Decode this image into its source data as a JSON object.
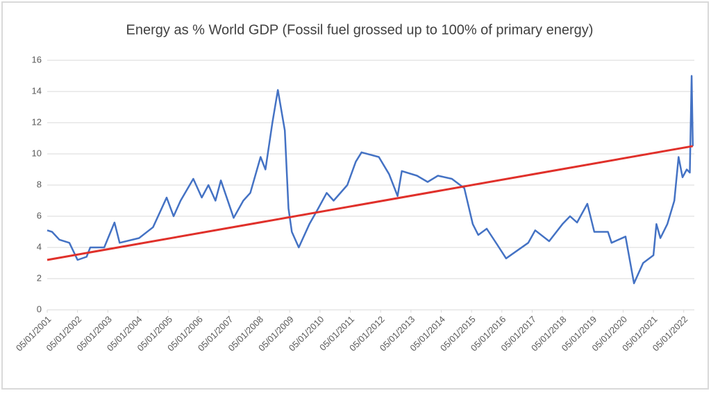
{
  "chart_data": {
    "type": "line",
    "title": "Energy as % World GDP (Fossil fuel grossed up to 100% of primary energy)",
    "series": [
      {
        "color": "#4472c4",
        "x": [
          2001.0,
          2001.16,
          2001.4,
          2001.73,
          2002.0,
          2002.3,
          2002.42,
          2002.88,
          2003.22,
          2003.39,
          2004.03,
          2004.49,
          2004.94,
          2005.17,
          2005.4,
          2005.82,
          2006.1,
          2006.32,
          2006.55,
          2006.73,
          2007.15,
          2007.47,
          2007.7,
          2008.04,
          2008.2,
          2008.43,
          2008.61,
          2008.84,
          2008.96,
          2009.07,
          2009.3,
          2009.65,
          2009.94,
          2010.22,
          2010.45,
          2010.9,
          2011.18,
          2011.37,
          2011.94,
          2012.28,
          2012.56,
          2012.7,
          2013.2,
          2013.55,
          2013.89,
          2014.35,
          2014.76,
          2015.04,
          2015.22,
          2015.5,
          2015.84,
          2016.14,
          2016.87,
          2017.1,
          2017.56,
          2018.0,
          2018.25,
          2018.48,
          2018.82,
          2019.05,
          2019.5,
          2019.62,
          2020.08,
          2020.36,
          2020.66,
          2021.0,
          2021.1,
          2021.23,
          2021.46,
          2021.69,
          2021.83,
          2021.96,
          2022.1,
          2022.2,
          2022.26,
          2022.3
        ],
        "values": [
          5.1,
          5.0,
          4.5,
          4.3,
          3.2,
          3.4,
          4.0,
          4.0,
          5.6,
          4.3,
          4.6,
          5.3,
          7.2,
          6.0,
          7.0,
          8.4,
          7.2,
          8.0,
          7.0,
          8.3,
          5.9,
          7.0,
          7.5,
          9.8,
          9.0,
          12.0,
          14.1,
          11.5,
          6.5,
          5.0,
          4.0,
          5.5,
          6.5,
          7.5,
          7.0,
          8.0,
          9.5,
          10.1,
          9.8,
          8.7,
          7.3,
          8.9,
          8.6,
          8.2,
          8.6,
          8.4,
          7.8,
          5.5,
          4.8,
          5.2,
          4.2,
          3.3,
          4.3,
          5.1,
          4.4,
          5.5,
          6.0,
          5.6,
          6.8,
          5.0,
          5.0,
          4.3,
          4.7,
          1.7,
          3.0,
          3.5,
          5.5,
          4.6,
          5.5,
          7.0,
          9.8,
          8.5,
          9.0,
          8.8,
          15.0,
          10.5
        ]
      },
      {
        "color": "#e0302a",
        "x": [
          2001.0,
          2022.3
        ],
        "values": [
          3.2,
          10.5
        ]
      }
    ],
    "xlim": [
      2001.0,
      2022.35
    ],
    "xticks": [
      {
        "value": 2001,
        "label": "05/01/2001"
      },
      {
        "value": 2002,
        "label": "05/01/2002"
      },
      {
        "value": 2003,
        "label": "05/01/2003"
      },
      {
        "value": 2004,
        "label": "05/01/2004"
      },
      {
        "value": 2005,
        "label": "05/01/2005"
      },
      {
        "value": 2006,
        "label": "05/01/2006"
      },
      {
        "value": 2007,
        "label": "05/01/2007"
      },
      {
        "value": 2008,
        "label": "05/01/2008"
      },
      {
        "value": 2009,
        "label": "05/01/2009"
      },
      {
        "value": 2010,
        "label": "05/01/2010"
      },
      {
        "value": 2011,
        "label": "05/01/2011"
      },
      {
        "value": 2012,
        "label": "05/01/2012"
      },
      {
        "value": 2013,
        "label": "05/01/2013"
      },
      {
        "value": 2014,
        "label": "05/01/2014"
      },
      {
        "value": 2015,
        "label": "05/01/2015"
      },
      {
        "value": 2016,
        "label": "05/01/2016"
      },
      {
        "value": 2017,
        "label": "05/01/2017"
      },
      {
        "value": 2018,
        "label": "05/01/2018"
      },
      {
        "value": 2019,
        "label": "05/01/2019"
      },
      {
        "value": 2020,
        "label": "05/01/2020"
      },
      {
        "value": 2021,
        "label": "05/01/2021"
      },
      {
        "value": 2022,
        "label": "05/01/2022"
      }
    ],
    "ylim": [
      0,
      16
    ],
    "yticks": [
      0,
      2,
      4,
      6,
      8,
      10,
      12,
      14,
      16
    ],
    "grid": true
  }
}
